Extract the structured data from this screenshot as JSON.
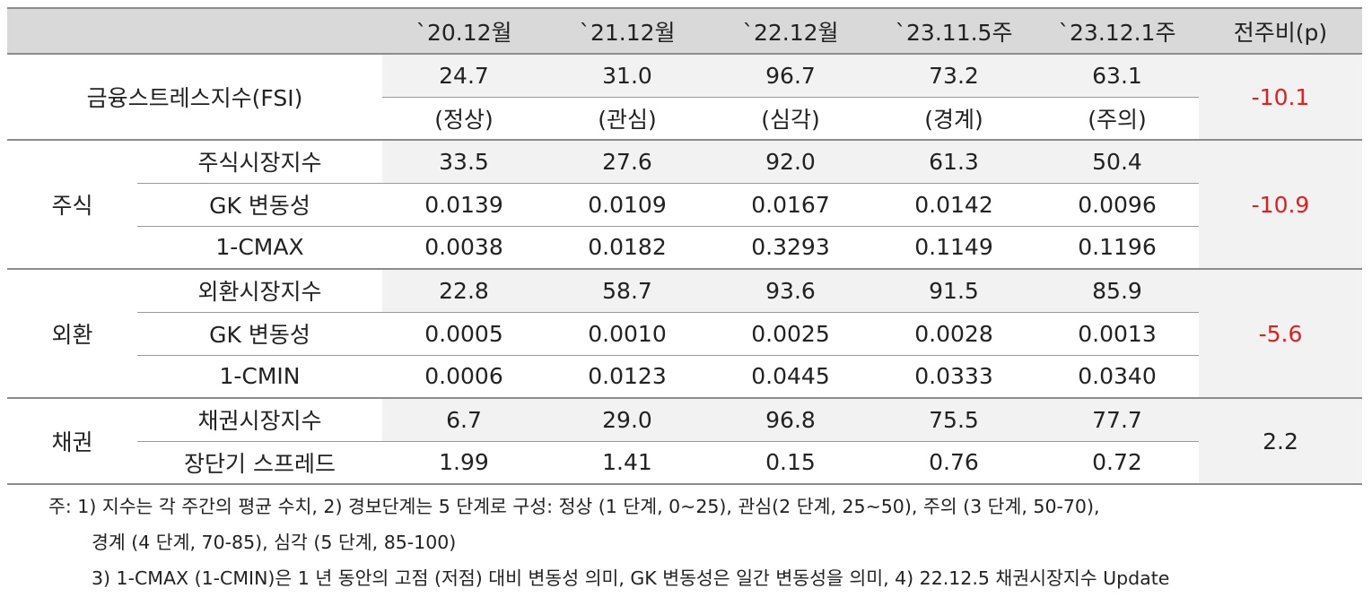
{
  "table": {
    "headers": [
      "`20.12월",
      "`21.12월",
      "`22.12월",
      "`23.11.5주",
      "`23.12.1주",
      "전주비(p)"
    ],
    "fsi": {
      "label": "금융스트레스지수(FSI)",
      "values": [
        "24.7",
        "31.0",
        "96.7",
        "73.2",
        "63.1"
      ],
      "status": [
        "(정상)",
        "(관심)",
        "(심각)",
        "(경계)",
        "(주의)"
      ],
      "change": "-10.1"
    },
    "groups": [
      {
        "name": "주식",
        "change": "-10.9",
        "rows": [
          {
            "label": "주식시장지수",
            "values": [
              "33.5",
              "27.6",
              "92.0",
              "61.3",
              "50.4"
            ]
          },
          {
            "label": "GK 변동성",
            "values": [
              "0.0139",
              "0.0109",
              "0.0167",
              "0.0142",
              "0.0096"
            ]
          },
          {
            "label": "1-CMAX",
            "values": [
              "0.0038",
              "0.0182",
              "0.3293",
              "0.1149",
              "0.1196"
            ]
          }
        ]
      },
      {
        "name": "외환",
        "change": "-5.6",
        "rows": [
          {
            "label": "외환시장지수",
            "values": [
              "22.8",
              "58.7",
              "93.6",
              "91.5",
              "85.9"
            ]
          },
          {
            "label": "GK 변동성",
            "values": [
              "0.0005",
              "0.0010",
              "0.0025",
              "0.0028",
              "0.0013"
            ]
          },
          {
            "label": "1-CMIN",
            "values": [
              "0.0006",
              "0.0123",
              "0.0445",
              "0.0333",
              "0.0340"
            ]
          }
        ]
      },
      {
        "name": "채권",
        "change": "2.2",
        "rows": [
          {
            "label": "채권시장지수",
            "values": [
              "6.7",
              "29.0",
              "96.8",
              "75.5",
              "77.7"
            ]
          },
          {
            "label": "장단기 스프레드",
            "values": [
              "1.99",
              "1.41",
              "0.15",
              "0.76",
              "0.72"
            ]
          }
        ]
      }
    ]
  },
  "notes": [
    "주: 1) 지수는 각 주간의 평균 수치, 2) 경보단계는 5 단계로 구성: 정상 (1 단계, 0~25), 관심(2 단계, 25~50), 주의 (3 단계, 50-70),",
    "경계 (4 단계, 70-85), 심각 (5 단계, 85-100)",
    "3) 1-CMAX (1-CMIN)은 1 년 동안의 고점 (저점) 대비 변동성 의미, GK 변동성은 일간 변동성을 의미, 4) 22.12.5 채권시장지수 Update"
  ],
  "colors": {
    "header_bg": "#d9d9d9",
    "shade_bg": "#f2f2f2",
    "negative": "#e02020"
  }
}
